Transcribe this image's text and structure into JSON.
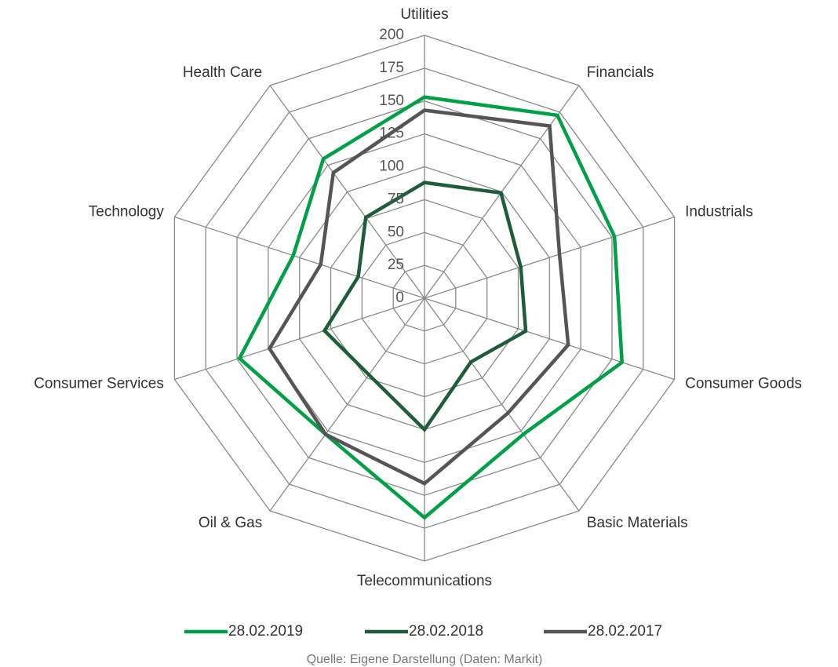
{
  "chart_data": {
    "type": "radar",
    "categories": [
      "Utilities",
      "Financials",
      "Industrials",
      "Consumer Goods",
      "Basic Materials",
      "Telecommunications",
      "Oil & Gas",
      "Consumer Services",
      "Technology",
      "Health Care"
    ],
    "series": [
      {
        "name": "28.02.2019",
        "color": "#00a046",
        "values": [
          153,
          172,
          152,
          158,
          128,
          167,
          128,
          148,
          105,
          131
        ]
      },
      {
        "name": "28.02.2018",
        "color": "#1f5c3b",
        "values": [
          88,
          99,
          77,
          81,
          60,
          100,
          72,
          80,
          53,
          76
        ]
      },
      {
        "name": "28.02.2017",
        "color": "#555555",
        "values": [
          143,
          162,
          108,
          115,
          108,
          141,
          128,
          124,
          83,
          118
        ]
      }
    ],
    "ylim": [
      0,
      200
    ],
    "yticks": [
      0,
      25,
      50,
      75,
      100,
      125,
      150,
      175,
      200
    ],
    "grid": true,
    "source": "Quelle: Eigene Darstellung (Daten: Markit)"
  }
}
